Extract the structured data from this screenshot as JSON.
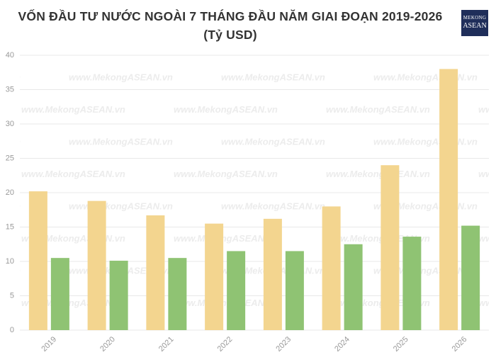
{
  "chart_data": {
    "type": "bar",
    "title": "VỐN ĐẦU TƯ NƯỚC NGOÀI 7 THÁNG ĐẦU NĂM GIAI ĐOẠN 2019-2026 (Tỷ USD)",
    "logo": [
      "MEKONG",
      "ASEAN"
    ],
    "watermark": "www.MekongASEAN.vn",
    "categories": [
      "2019",
      "2020",
      "2021",
      "2022",
      "2023",
      "2024",
      "2025",
      "2026"
    ],
    "series": [
      {
        "color": "#f3d58f",
        "values": [
          20.2,
          18.8,
          16.7,
          15.5,
          16.2,
          18,
          24,
          38
        ]
      },
      {
        "color": "#8fc373",
        "values": [
          10.5,
          10.1,
          10.5,
          11.5,
          11.5,
          12.5,
          13.6,
          15.2
        ]
      }
    ],
    "ylim": [
      0,
      40
    ],
    "yticks": [
      0,
      5,
      10,
      15,
      20,
      25,
      30,
      35,
      40
    ],
    "grid": true
  }
}
